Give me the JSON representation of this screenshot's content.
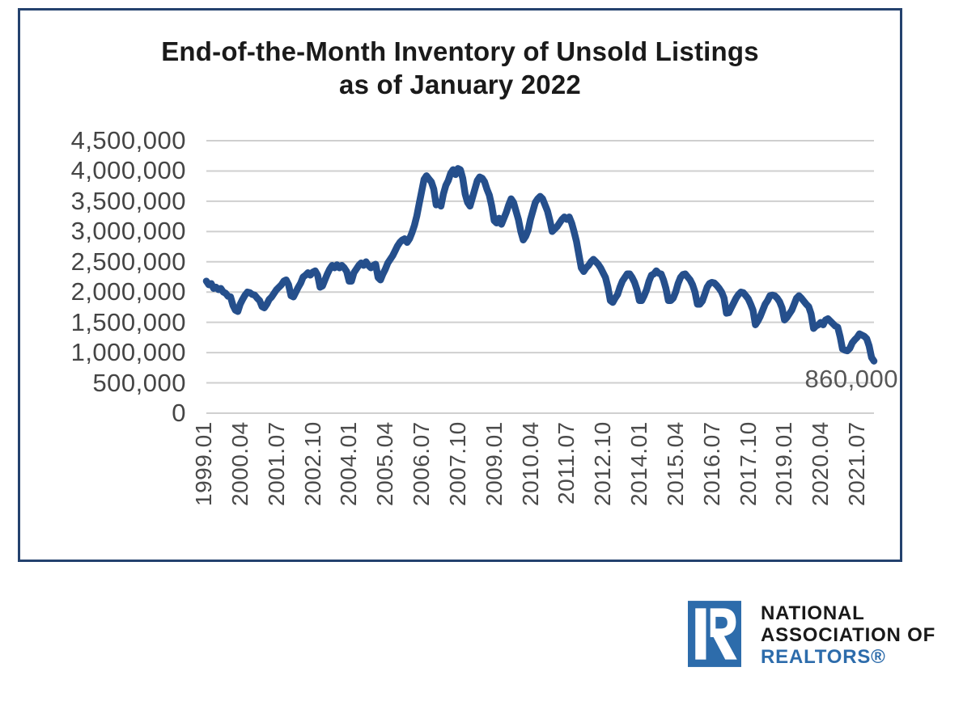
{
  "title": {
    "line1": "End-of-the-Month Inventory of Unsold Listings",
    "line2": "as of January 2022"
  },
  "annotation": {
    "last_value_label": "860,000"
  },
  "logo": {
    "letter": "R",
    "line1": "NATIONAL",
    "line2": "ASSOCIATION OF",
    "line3": "REALTORS®",
    "blue": "#2d6cab",
    "text_color": "#191919"
  },
  "colors": {
    "frame_border": "#24426e",
    "line": "#254f8c",
    "gridline": "#cfcfcf",
    "axis_label": "#4a4a4a",
    "annotation": "#575757"
  },
  "chart_data": {
    "type": "line",
    "title": "End-of-the-Month Inventory of Unsold Listings as of January 2022",
    "xlabel": "",
    "ylabel": "",
    "ylim": [
      0,
      4500000
    ],
    "y_tick_step": 500000,
    "grid": "horizontal",
    "legend": "none",
    "frequency": "monthly",
    "x_start": "1999.01",
    "x_end": "2022.01",
    "x_tick_interval_months": 15,
    "x_tick_labels": [
      "1999.01",
      "2000.04",
      "2001.07",
      "2002.10",
      "2004.01",
      "2005.04",
      "2006.07",
      "2007.10",
      "2009.01",
      "2010.04",
      "2011.07",
      "2012.10",
      "2014.01",
      "2015.04",
      "2016.07",
      "2017.10",
      "2019.01",
      "2020.04",
      "2021.07"
    ],
    "y_tick_labels": [
      "4,500,000",
      "4,000,000",
      "3,500,000",
      "3,000,000",
      "2,500,000",
      "2,000,000",
      "1,500,000",
      "1,000,000",
      "500,000",
      "0"
    ],
    "last_point_annotation": "860,000",
    "series_name": "End-of-month inventory of unsold listings",
    "values": [
      2180000,
      2120000,
      2140000,
      2060000,
      2080000,
      2040000,
      2060000,
      2000000,
      1980000,
      1930000,
      1920000,
      1780000,
      1700000,
      1680000,
      1800000,
      1880000,
      1950000,
      2000000,
      1990000,
      1960000,
      1950000,
      1900000,
      1860000,
      1760000,
      1740000,
      1800000,
      1880000,
      1920000,
      1980000,
      2040000,
      2080000,
      2120000,
      2180000,
      2200000,
      2120000,
      1940000,
      1920000,
      2000000,
      2080000,
      2150000,
      2250000,
      2280000,
      2320000,
      2280000,
      2330000,
      2350000,
      2280000,
      2080000,
      2100000,
      2200000,
      2300000,
      2380000,
      2440000,
      2400000,
      2450000,
      2400000,
      2440000,
      2400000,
      2340000,
      2180000,
      2180000,
      2320000,
      2380000,
      2440000,
      2480000,
      2440000,
      2500000,
      2440000,
      2400000,
      2440000,
      2460000,
      2240000,
      2200000,
      2300000,
      2380000,
      2480000,
      2540000,
      2600000,
      2680000,
      2760000,
      2820000,
      2860000,
      2880000,
      2820000,
      2880000,
      2980000,
      3100000,
      3260000,
      3460000,
      3660000,
      3860000,
      3920000,
      3870000,
      3820000,
      3700000,
      3440000,
      3480000,
      3420000,
      3620000,
      3760000,
      3840000,
      3960000,
      4020000,
      3940000,
      4040000,
      4020000,
      3880000,
      3620000,
      3480000,
      3420000,
      3560000,
      3700000,
      3840000,
      3900000,
      3880000,
      3820000,
      3700000,
      3600000,
      3420000,
      3180000,
      3140000,
      3220000,
      3120000,
      3220000,
      3320000,
      3440000,
      3540000,
      3480000,
      3340000,
      3200000,
      3000000,
      2860000,
      2920000,
      3020000,
      3200000,
      3340000,
      3480000,
      3540000,
      3580000,
      3540000,
      3440000,
      3340000,
      3180000,
      3000000,
      3040000,
      3080000,
      3140000,
      3200000,
      3240000,
      3200000,
      3240000,
      3140000,
      3000000,
      2840000,
      2620000,
      2400000,
      2340000,
      2400000,
      2440000,
      2500000,
      2540000,
      2500000,
      2460000,
      2400000,
      2320000,
      2240000,
      2080000,
      1860000,
      1830000,
      1900000,
      1960000,
      2080000,
      2180000,
      2240000,
      2300000,
      2300000,
      2240000,
      2160000,
      2040000,
      1860000,
      1860000,
      1940000,
      2040000,
      2180000,
      2280000,
      2300000,
      2350000,
      2310000,
      2300000,
      2200000,
      2060000,
      1860000,
      1860000,
      1900000,
      2000000,
      2140000,
      2240000,
      2290000,
      2300000,
      2250000,
      2200000,
      2120000,
      2000000,
      1800000,
      1800000,
      1850000,
      1960000,
      2080000,
      2140000,
      2160000,
      2150000,
      2110000,
      2060000,
      2000000,
      1900000,
      1650000,
      1660000,
      1740000,
      1820000,
      1900000,
      1960000,
      2000000,
      1990000,
      1940000,
      1890000,
      1800000,
      1700000,
      1460000,
      1520000,
      1600000,
      1700000,
      1800000,
      1860000,
      1940000,
      1950000,
      1940000,
      1900000,
      1840000,
      1740000,
      1540000,
      1580000,
      1640000,
      1700000,
      1800000,
      1900000,
      1940000,
      1900000,
      1850000,
      1800000,
      1760000,
      1640000,
      1400000,
      1440000,
      1460000,
      1500000,
      1460000,
      1540000,
      1560000,
      1520000,
      1480000,
      1440000,
      1420000,
      1260000,
      1060000,
      1040000,
      1030000,
      1070000,
      1160000,
      1210000,
      1250000,
      1310000,
      1290000,
      1270000,
      1230000,
      1110000,
      920000,
      860000
    ]
  }
}
